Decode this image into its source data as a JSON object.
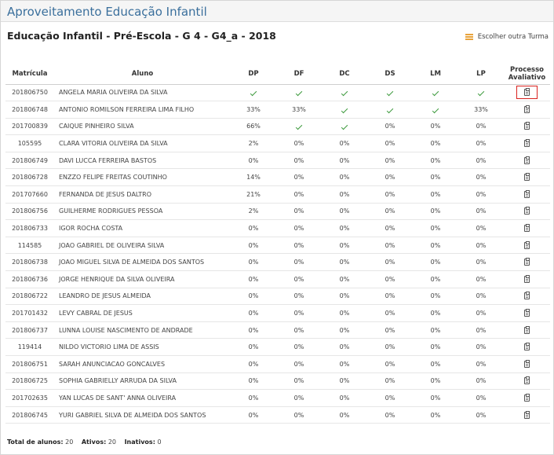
{
  "panel": {
    "title": "Aproveitamento Educação Infantil"
  },
  "subheader": {
    "title": "Educação Infantil - Pré-Escola - G 4 - G4_a - 2018",
    "choose_label": "Escolher outra Turma"
  },
  "table": {
    "headers": {
      "matricula": "Matrícula",
      "aluno": "Aluno",
      "dp": "DP",
      "df": "DF",
      "dc": "DC",
      "ds": "DS",
      "lm": "LM",
      "lp": "LP",
      "processo": "Processo Avaliativo"
    },
    "rows": [
      {
        "matricula": "201806750",
        "aluno": "ANGELA MARIA OLIVEIRA DA SILVA",
        "dp": "✓",
        "df": "✓",
        "dc": "✓",
        "ds": "✓",
        "lm": "✓",
        "lp": "✓"
      },
      {
        "matricula": "201806748",
        "aluno": "ANTONIO ROMILSON FERREIRA LIMA FILHO",
        "dp": "33%",
        "df": "33%",
        "dc": "✓",
        "ds": "✓",
        "lm": "✓",
        "lp": "33%"
      },
      {
        "matricula": "201700839",
        "aluno": "CAIQUE PINHEIRO SILVA",
        "dp": "66%",
        "df": "✓",
        "dc": "✓",
        "ds": "0%",
        "lm": "0%",
        "lp": "0%"
      },
      {
        "matricula": "105595",
        "aluno": "CLARA VITORIA OLIVEIRA DA SILVA",
        "dp": "2%",
        "df": "0%",
        "dc": "0%",
        "ds": "0%",
        "lm": "0%",
        "lp": "0%"
      },
      {
        "matricula": "201806749",
        "aluno": "DAVI LUCCA FERREIRA BASTOS",
        "dp": "0%",
        "df": "0%",
        "dc": "0%",
        "ds": "0%",
        "lm": "0%",
        "lp": "0%"
      },
      {
        "matricula": "201806728",
        "aluno": "ENZZO FELIPE FREITAS COUTINHO",
        "dp": "14%",
        "df": "0%",
        "dc": "0%",
        "ds": "0%",
        "lm": "0%",
        "lp": "0%"
      },
      {
        "matricula": "201707660",
        "aluno": "FERNANDA DE JESUS DALTRO",
        "dp": "21%",
        "df": "0%",
        "dc": "0%",
        "ds": "0%",
        "lm": "0%",
        "lp": "0%"
      },
      {
        "matricula": "201806756",
        "aluno": "GUILHERME RODRIGUES PESSOA",
        "dp": "2%",
        "df": "0%",
        "dc": "0%",
        "ds": "0%",
        "lm": "0%",
        "lp": "0%"
      },
      {
        "matricula": "201806733",
        "aluno": "IGOR ROCHA COSTA",
        "dp": "0%",
        "df": "0%",
        "dc": "0%",
        "ds": "0%",
        "lm": "0%",
        "lp": "0%"
      },
      {
        "matricula": "114585",
        "aluno": "JOAO GABRIEL DE OLIVEIRA SILVA",
        "dp": "0%",
        "df": "0%",
        "dc": "0%",
        "ds": "0%",
        "lm": "0%",
        "lp": "0%"
      },
      {
        "matricula": "201806738",
        "aluno": "JOAO MIGUEL SILVA DE ALMEIDA DOS SANTOS",
        "dp": "0%",
        "df": "0%",
        "dc": "0%",
        "ds": "0%",
        "lm": "0%",
        "lp": "0%"
      },
      {
        "matricula": "201806736",
        "aluno": "JORGE HENRIQUE DA SILVA OLIVEIRA",
        "dp": "0%",
        "df": "0%",
        "dc": "0%",
        "ds": "0%",
        "lm": "0%",
        "lp": "0%"
      },
      {
        "matricula": "201806722",
        "aluno": "LEANDRO DE JESUS ALMEIDA",
        "dp": "0%",
        "df": "0%",
        "dc": "0%",
        "ds": "0%",
        "lm": "0%",
        "lp": "0%"
      },
      {
        "matricula": "201701432",
        "aluno": "LEVY CABRAL DE JESUS",
        "dp": "0%",
        "df": "0%",
        "dc": "0%",
        "ds": "0%",
        "lm": "0%",
        "lp": "0%"
      },
      {
        "matricula": "201806737",
        "aluno": "LUNNA LOUISE NASCIMENTO DE ANDRADE",
        "dp": "0%",
        "df": "0%",
        "dc": "0%",
        "ds": "0%",
        "lm": "0%",
        "lp": "0%"
      },
      {
        "matricula": "119414",
        "aluno": "NILDO VICTORIO LIMA DE ASSIS",
        "dp": "0%",
        "df": "0%",
        "dc": "0%",
        "ds": "0%",
        "lm": "0%",
        "lp": "0%"
      },
      {
        "matricula": "201806751",
        "aluno": "SARAH ANUNCIACAO GONCALVES",
        "dp": "0%",
        "df": "0%",
        "dc": "0%",
        "ds": "0%",
        "lm": "0%",
        "lp": "0%"
      },
      {
        "matricula": "201806725",
        "aluno": "SOPHIA GABRIELLY ARRUDA DA SILVA",
        "dp": "0%",
        "df": "0%",
        "dc": "0%",
        "ds": "0%",
        "lm": "0%",
        "lp": "0%"
      },
      {
        "matricula": "201702635",
        "aluno": "YAN LUCAS DE SANT' ANNA OLIVEIRA",
        "dp": "0%",
        "df": "0%",
        "dc": "0%",
        "ds": "0%",
        "lm": "0%",
        "lp": "0%"
      },
      {
        "matricula": "201806745",
        "aluno": "YURI GABRIEL SILVA DE ALMEIDA DOS SANTOS",
        "dp": "0%",
        "df": "0%",
        "dc": "0%",
        "ds": "0%",
        "lm": "0%",
        "lp": "0%"
      }
    ]
  },
  "footer": {
    "total_label": "Total de alunos:",
    "total": "20",
    "ativos_label": "Ativos:",
    "ativos": "20",
    "inativos_label": "Inativos:",
    "inativos": "0"
  },
  "icons": {
    "choose": "list-icon",
    "check": "check-icon",
    "processo": "clipboard-icon"
  },
  "colors": {
    "title": "#3a6f9c",
    "check": "#3d9a3d",
    "highlight": "#d9231f",
    "list_icon": "#e8a33c"
  }
}
